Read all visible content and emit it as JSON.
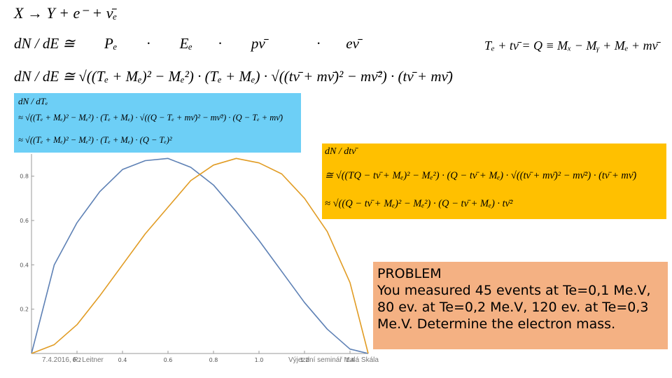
{
  "equations": {
    "reaction": "X → Y + e⁻ + ν̄ₑ",
    "proportional": "dN / dE ≅        Pₑ        ·        Eₑ       ·        pν̄              ·       eν̄",
    "energy": "Tₑ + tν̄ = Q ≡ Mₓ − Mᵧ + Mₑ + mν̄",
    "full": "dN / dE ≅ √((Tₑ + Mₑ)² − Mₑ²) · (Tₑ + Mₑ) · √((tν̄ + mν̄)² − mν̄²) · (tν̄ + mν̄)"
  },
  "electron_box": {
    "title": "dN / dTₑ",
    "line1": "≈ √((Tₑ + Mₑ)² − Mₑ²) · (Tₑ + Mₑ) · √((Q − Tₑ + mν̄)² − mν̄²) · (Q − Tₑ + mν̄)",
    "line2": "≈ √((Tₑ + Mₑ)² − Mₑ²) · (Tₑ + Mₑ) · (Q − Tₑ)²"
  },
  "neutrino_box": {
    "title": "dN / dtν̄",
    "line1": "≅ √((TQ − tν̄ + Mₑ)² − Mₑ²) · (Q − tν̄ + Mₑ) · √((tν̄ + mν̄)² − mν̄²) · (tν̄ + mν̄)",
    "line2": "≈ √((Q − tν̄ + Mₑ)² − Mₑ²) · (Q − tν̄ + Mₑ) · tν̄²"
  },
  "problem": {
    "title": "PROBLEM",
    "text": "You measured 45 events at Te=0,1 Me.V, 80 ev. at Te=0,2 Me.V, 120 ev. at Te=0,3 Me.V. Determine the electron mass."
  },
  "footer": {
    "date": "7.4.2016, R. Leitner",
    "event": "Výjezdní seminář Malá Skála"
  },
  "chart_data": {
    "type": "line",
    "x": [
      0,
      0.1,
      0.2,
      0.3,
      0.4,
      0.5,
      0.6,
      0.7,
      0.8,
      0.9,
      1.0,
      1.1,
      1.2,
      1.3,
      1.4,
      1.48
    ],
    "series": [
      {
        "color": "#5e81b5",
        "values": [
          0,
          0.4,
          0.59,
          0.73,
          0.83,
          0.87,
          0.88,
          0.84,
          0.76,
          0.64,
          0.51,
          0.37,
          0.23,
          0.11,
          0.02,
          0
        ]
      },
      {
        "color": "#e19c24",
        "values": [
          0,
          0.04,
          0.13,
          0.26,
          0.4,
          0.54,
          0.66,
          0.78,
          0.85,
          0.88,
          0.86,
          0.81,
          0.7,
          0.55,
          0.32,
          0
        ]
      }
    ],
    "xlim": [
      0,
      1.48
    ],
    "ylim": [
      0,
      0.9
    ],
    "xticks": [
      0.2,
      0.4,
      0.6,
      0.8,
      {
        "value": 1,
        "label": "1.0"
      },
      1.2,
      1.4
    ],
    "yticks": [
      0.2,
      0.4,
      0.6,
      0.8
    ]
  }
}
